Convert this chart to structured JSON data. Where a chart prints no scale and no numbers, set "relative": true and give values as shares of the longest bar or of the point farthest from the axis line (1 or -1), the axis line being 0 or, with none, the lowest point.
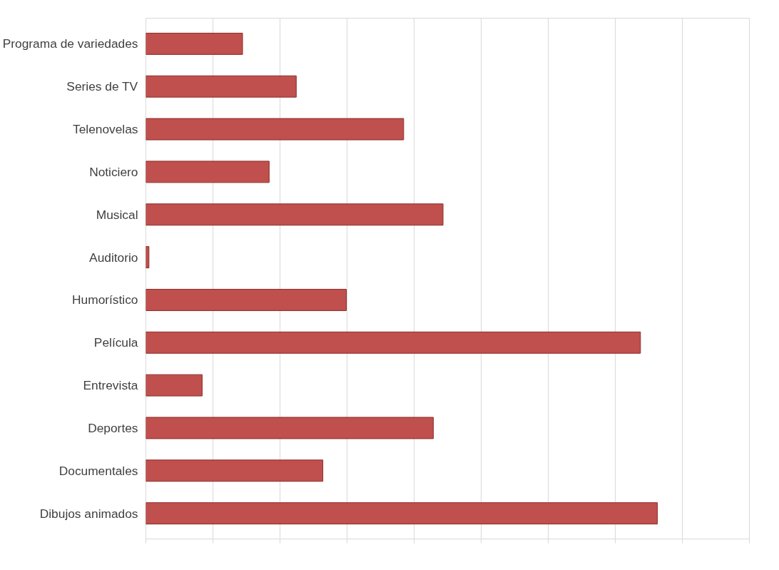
{
  "chart_data": {
    "type": "bar",
    "orientation": "horizontal",
    "relative": true,
    "grid": "x",
    "categories": [
      "Programa de variedades",
      "Series de TV",
      "Telenovelas",
      "Noticiero",
      "Musical",
      "Auditorio",
      "Humorístico",
      "Película",
      "Entrevista",
      "Deportes",
      "Documentales",
      "Dibujos animados"
    ],
    "values": [
      0.189,
      0.294,
      0.504,
      0.241,
      0.581,
      0.006,
      0.392,
      0.967,
      0.11,
      0.562,
      0.346,
      1.0
    ],
    "color": "#c0504d"
  }
}
